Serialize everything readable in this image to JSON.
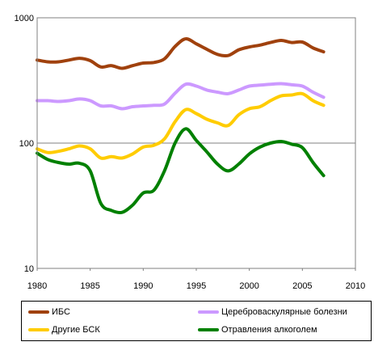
{
  "chart_data": {
    "type": "line",
    "y_scale": "log",
    "ylim": [
      10,
      1000
    ],
    "xlim": [
      1980,
      2010
    ],
    "x_ticks": [
      "1980",
      "1985",
      "1990",
      "1995",
      "2000",
      "2005",
      "2010"
    ],
    "y_ticks": [
      "10",
      "100",
      "1000"
    ],
    "grid": "horizontal",
    "legend_placement": "bottom",
    "x": [
      1980,
      1981,
      1982,
      1983,
      1984,
      1985,
      1986,
      1987,
      1988,
      1989,
      1990,
      1991,
      1992,
      1993,
      1994,
      1995,
      1996,
      1997,
      1998,
      1999,
      2000,
      2001,
      2002,
      2003,
      2004,
      2005,
      2006,
      2007
    ],
    "series": [
      {
        "name": "ИБС",
        "color": "#a0410d",
        "values": [
          460,
          445,
          445,
          460,
          475,
          455,
          405,
          415,
          395,
          415,
          435,
          440,
          470,
          590,
          680,
          620,
          560,
          510,
          500,
          555,
          585,
          605,
          635,
          660,
          635,
          640,
          575,
          535
        ]
      },
      {
        "name": "Цереброваскулярные болезни",
        "color": "#cc99ff",
        "values": [
          218,
          218,
          215,
          218,
          225,
          218,
          198,
          198,
          188,
          195,
          198,
          200,
          205,
          250,
          295,
          285,
          265,
          255,
          248,
          265,
          285,
          290,
          295,
          298,
          292,
          285,
          255,
          232
        ]
      },
      {
        "name": "Другие БСК",
        "color": "#ffcc00",
        "values": [
          90,
          84,
          86,
          90,
          95,
          90,
          76,
          78,
          76,
          82,
          93,
          96,
          108,
          148,
          185,
          172,
          155,
          145,
          138,
          168,
          188,
          195,
          218,
          238,
          242,
          248,
          218,
          200
        ]
      },
      {
        "name": "Отравления алкоголем",
        "color": "#008000",
        "values": [
          83,
          74,
          70,
          68,
          69,
          60,
          33,
          29,
          28,
          32,
          40,
          42,
          60,
          100,
          130,
          105,
          85,
          68,
          60,
          68,
          82,
          93,
          100,
          103,
          98,
          92,
          70,
          55
        ]
      }
    ]
  }
}
